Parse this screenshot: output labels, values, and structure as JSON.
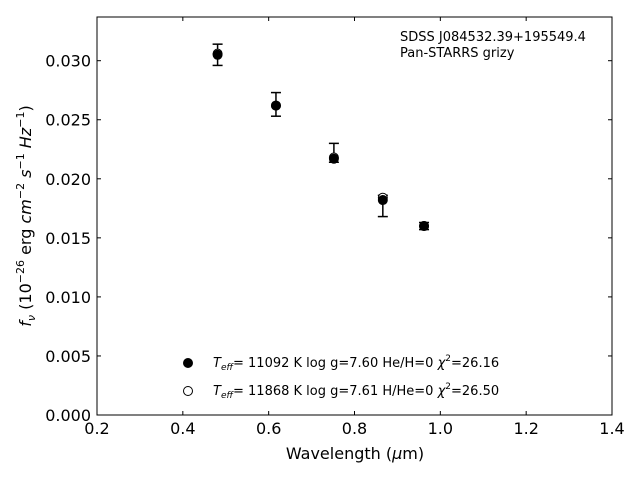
{
  "chart_data": {
    "type": "scatter",
    "title": "",
    "annotations": [
      "SDSS J084532.39+195549.4",
      "Pan-STARRS grizy"
    ],
    "xlabel": {
      "main": "Wavelength (",
      "mu": "μ",
      "unit": "m)"
    },
    "ylabel": {
      "f": "f",
      "nu": "ν",
      "open": " (10",
      "exp1": "−26",
      "erg": " erg ",
      "cm": "cm",
      "exp2": "−2",
      "s": " s",
      "exp3": "−1",
      "hz": " Hz",
      "exp4": "−1",
      "close": ")"
    },
    "xlim": [
      0.2,
      1.4
    ],
    "ylim": [
      0.0,
      0.0337
    ],
    "xticks": [
      0.2,
      0.4,
      0.6,
      0.8,
      1.0,
      1.2,
      1.4
    ],
    "xtick_labels": [
      "0.2",
      "0.4",
      "0.6",
      "0.8",
      "1.0",
      "1.2",
      "1.4"
    ],
    "yticks": [
      0.0,
      0.005,
      0.01,
      0.015,
      0.02,
      0.025,
      0.03
    ],
    "ytick_labels": [
      "0.000",
      "0.005",
      "0.010",
      "0.015",
      "0.020",
      "0.025",
      "0.030"
    ],
    "grid": false,
    "observed": {
      "x": [
        0.481,
        0.617,
        0.752,
        0.866,
        0.962
      ],
      "y": [
        0.0305,
        0.0263,
        0.0222,
        0.0177,
        0.016
      ],
      "yerr": [
        0.0009,
        0.001,
        0.0008,
        0.0009,
        0.0003
      ]
    },
    "series": [
      {
        "marker": "filled",
        "x": [
          0.481,
          0.617,
          0.752,
          0.866,
          0.962
        ],
        "y": [
          0.0305,
          0.0262,
          0.0217,
          0.0182,
          0.016
        ],
        "legend": {
          "tpre": "T",
          "tsub": "eff",
          "mid": "= 11092 K  log g=7.60  He/H=0  ",
          "chi": "χ",
          "chisup": "2",
          "post": "=26.16"
        }
      },
      {
        "marker": "open",
        "x": [
          0.481,
          0.617,
          0.752,
          0.866,
          0.962
        ],
        "y": [
          0.0306,
          0.0262,
          0.0218,
          0.0184,
          0.016
        ],
        "legend": {
          "tpre": "T",
          "tsub": "eff",
          "mid": "= 11868 K  log g=7.61  H/He=0  ",
          "chi": "χ",
          "chisup": "2",
          "post": "=26.50"
        }
      }
    ],
    "legend_placement": "bottom-center",
    "colors": {
      "marker": "#000000",
      "axis": "#000000"
    }
  }
}
